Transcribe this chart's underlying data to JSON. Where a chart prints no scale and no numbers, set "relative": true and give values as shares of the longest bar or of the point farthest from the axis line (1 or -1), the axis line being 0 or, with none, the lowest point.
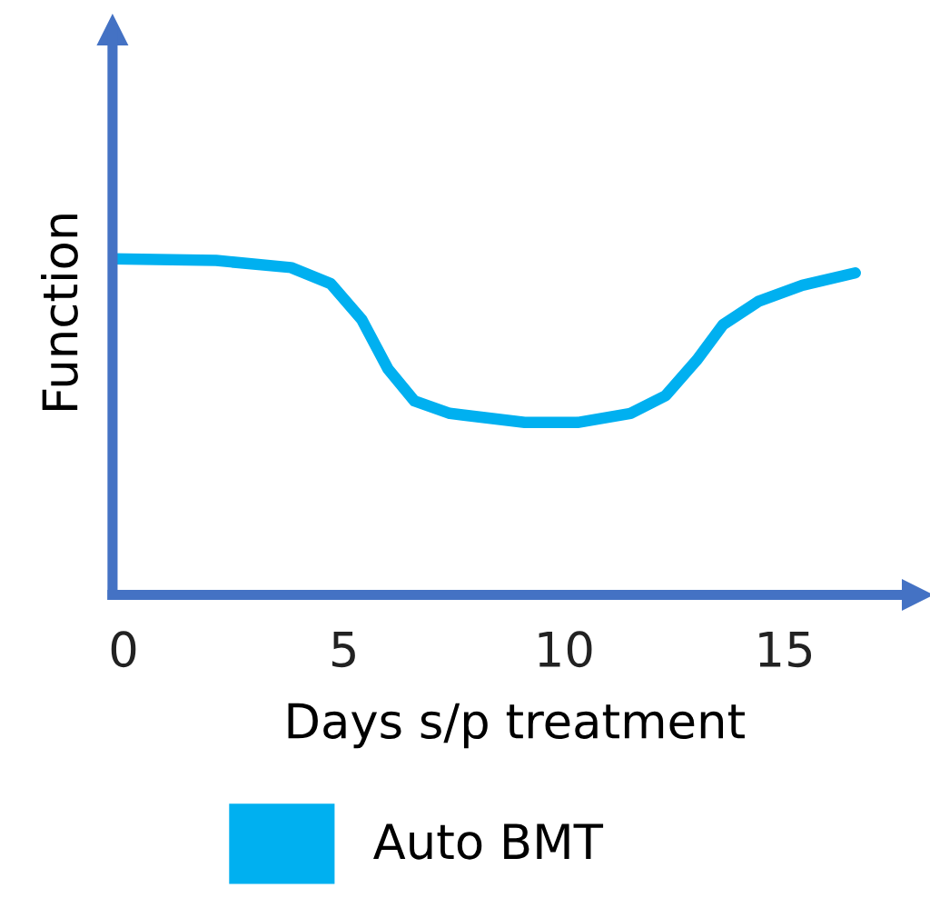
{
  "chart_data": {
    "type": "line",
    "relative": true,
    "xlabel": "Days s/p treatment",
    "ylabel": "Function",
    "xlim": [
      -0.25,
      18
    ],
    "xticks": [
      0,
      5,
      10,
      15
    ],
    "grid": false,
    "legend": "bottom",
    "marker": "none",
    "line_style": "solid",
    "series": [
      {
        "name": "Auto BMT",
        "color": "#00b0f0",
        "x": [
          -0.25,
          2.1,
          3.8,
          4.7,
          5.4,
          6.0,
          6.6,
          7.4,
          9.1,
          10.3,
          11.5,
          12.3,
          13.0,
          13.6,
          14.4,
          15.4,
          16.6
        ],
        "values": [
          1.0,
          0.995,
          0.974,
          0.926,
          0.82,
          0.672,
          0.577,
          0.54,
          0.513,
          0.513,
          0.54,
          0.593,
          0.698,
          0.804,
          0.873,
          0.921,
          0.958
        ]
      }
    ]
  }
}
